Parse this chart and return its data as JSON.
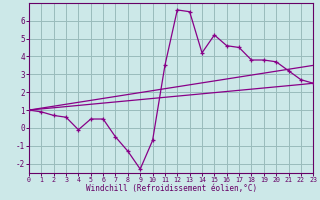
{
  "x": [
    0,
    1,
    2,
    3,
    4,
    5,
    6,
    7,
    8,
    9,
    10,
    11,
    12,
    13,
    14,
    15,
    16,
    17,
    18,
    19,
    20,
    21,
    22,
    23
  ],
  "y_main": [
    1.0,
    0.9,
    0.7,
    0.6,
    -0.1,
    0.5,
    0.5,
    -0.5,
    -1.3,
    -2.3,
    -0.7,
    3.5,
    6.6,
    6.5,
    4.2,
    5.2,
    4.6,
    4.5,
    3.8,
    3.8,
    3.7,
    3.2,
    2.7,
    2.5
  ],
  "y_line1": [
    1.0,
    1.065,
    1.13,
    1.195,
    1.26,
    1.325,
    1.39,
    1.455,
    1.52,
    1.585,
    1.65,
    1.715,
    1.78,
    1.845,
    1.91,
    1.975,
    2.04,
    2.105,
    2.17,
    2.235,
    2.3,
    2.365,
    2.43,
    2.5
  ],
  "y_line2": [
    1.0,
    1.109,
    1.217,
    1.326,
    1.435,
    1.543,
    1.652,
    1.761,
    1.87,
    1.978,
    2.087,
    2.196,
    2.304,
    2.413,
    2.522,
    2.63,
    2.739,
    2.848,
    2.957,
    3.065,
    3.174,
    3.283,
    3.391,
    3.5
  ],
  "line_color": "#880088",
  "bg_color": "#cce8e8",
  "grid_color": "#99bbbb",
  "axis_color": "#660066",
  "spine_color": "#660066",
  "ylim": [
    -2.5,
    7.0
  ],
  "xlim": [
    0,
    23
  ],
  "yticks": [
    -2,
    -1,
    0,
    1,
    2,
    3,
    4,
    5,
    6
  ],
  "xticks": [
    0,
    1,
    2,
    3,
    4,
    5,
    6,
    7,
    8,
    9,
    10,
    11,
    12,
    13,
    14,
    15,
    16,
    17,
    18,
    19,
    20,
    21,
    22,
    23
  ],
  "xlabel": "Windchill (Refroidissement éolien,°C)"
}
